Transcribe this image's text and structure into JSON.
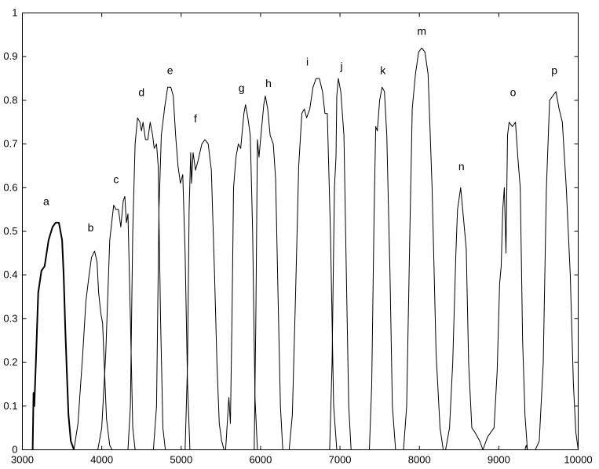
{
  "chart_data": {
    "type": "line",
    "title": "",
    "xlabel": "",
    "ylabel": "",
    "xlim": [
      3000,
      10000
    ],
    "ylim": [
      0,
      1
    ],
    "xticks": [
      "3000",
      "4000",
      "5000",
      "6000",
      "7000",
      "8000",
      "9000",
      "10000"
    ],
    "yticks": [
      "0",
      "0.1",
      "0.2",
      "0.3",
      "0.4",
      "0.5",
      "0.6",
      "0.7",
      "0.8",
      "0.9",
      "1"
    ],
    "grid": false,
    "series": [
      {
        "name": "a",
        "label_at": [
          3300,
          0.56
        ],
        "bold": true,
        "points": [
          [
            3130,
            0
          ],
          [
            3140,
            0.13
          ],
          [
            3150,
            0.1
          ],
          [
            3170,
            0.2
          ],
          [
            3200,
            0.36
          ],
          [
            3240,
            0.41
          ],
          [
            3280,
            0.42
          ],
          [
            3330,
            0.48
          ],
          [
            3380,
            0.51
          ],
          [
            3420,
            0.52
          ],
          [
            3460,
            0.52
          ],
          [
            3500,
            0.48
          ],
          [
            3520,
            0.4
          ],
          [
            3540,
            0.28
          ],
          [
            3560,
            0.18
          ],
          [
            3580,
            0.08
          ],
          [
            3610,
            0.02
          ],
          [
            3650,
            0
          ]
        ]
      },
      {
        "name": "b",
        "label_at": [
          3860,
          0.5
        ],
        "points": [
          [
            3650,
            0
          ],
          [
            3700,
            0.06
          ],
          [
            3760,
            0.22
          ],
          [
            3800,
            0.34
          ],
          [
            3840,
            0.4
          ],
          [
            3870,
            0.44
          ],
          [
            3910,
            0.455
          ],
          [
            3940,
            0.43
          ],
          [
            3960,
            0.36
          ],
          [
            3990,
            0.31
          ],
          [
            4010,
            0.29
          ],
          [
            4030,
            0.2
          ],
          [
            4060,
            0.07
          ],
          [
            4100,
            0.01
          ],
          [
            4130,
            0
          ]
        ]
      },
      {
        "name": "c",
        "label_at": [
          4180,
          0.61
        ],
        "points": [
          [
            3950,
            0
          ],
          [
            4000,
            0.05
          ],
          [
            4050,
            0.22
          ],
          [
            4100,
            0.48
          ],
          [
            4150,
            0.56
          ],
          [
            4180,
            0.55
          ],
          [
            4210,
            0.55
          ],
          [
            4240,
            0.51
          ],
          [
            4270,
            0.57
          ],
          [
            4290,
            0.58
          ],
          [
            4310,
            0.52
          ],
          [
            4330,
            0.54
          ],
          [
            4360,
            0.3
          ],
          [
            4390,
            0.05
          ],
          [
            4420,
            0
          ]
        ]
      },
      {
        "name": "d",
        "label_at": [
          4500,
          0.81
        ],
        "points": [
          [
            4330,
            0
          ],
          [
            4360,
            0.1
          ],
          [
            4390,
            0.5
          ],
          [
            4420,
            0.7
          ],
          [
            4450,
            0.76
          ],
          [
            4480,
            0.75
          ],
          [
            4500,
            0.73
          ],
          [
            4520,
            0.75
          ],
          [
            4550,
            0.71
          ],
          [
            4580,
            0.71
          ],
          [
            4610,
            0.75
          ],
          [
            4640,
            0.72
          ],
          [
            4660,
            0.69
          ],
          [
            4690,
            0.7
          ],
          [
            4710,
            0.65
          ],
          [
            4740,
            0.3
          ],
          [
            4770,
            0.05
          ],
          [
            4800,
            0
          ]
        ]
      },
      {
        "name": "e",
        "label_at": [
          4860,
          0.86
        ],
        "points": [
          [
            4650,
            0
          ],
          [
            4690,
            0.1
          ],
          [
            4720,
            0.55
          ],
          [
            4750,
            0.72
          ],
          [
            4790,
            0.78
          ],
          [
            4830,
            0.83
          ],
          [
            4870,
            0.83
          ],
          [
            4900,
            0.81
          ],
          [
            4930,
            0.72
          ],
          [
            4960,
            0.65
          ],
          [
            4990,
            0.61
          ],
          [
            5020,
            0.63
          ],
          [
            5050,
            0.45
          ],
          [
            5080,
            0.15
          ],
          [
            5110,
            0
          ]
        ]
      },
      {
        "name": "f",
        "label_at": [
          5180,
          0.75
        ],
        "points": [
          [
            5050,
            0
          ],
          [
            5080,
            0.2
          ],
          [
            5100,
            0.55
          ],
          [
            5120,
            0.68
          ],
          [
            5130,
            0.61
          ],
          [
            5150,
            0.68
          ],
          [
            5180,
            0.64
          ],
          [
            5210,
            0.66
          ],
          [
            5260,
            0.7
          ],
          [
            5300,
            0.71
          ],
          [
            5340,
            0.7
          ],
          [
            5380,
            0.64
          ],
          [
            5420,
            0.4
          ],
          [
            5450,
            0.2
          ],
          [
            5480,
            0.06
          ],
          [
            5510,
            0.02
          ],
          [
            5540,
            0
          ]
        ]
      },
      {
        "name": "g",
        "label_at": [
          5760,
          0.82
        ],
        "points": [
          [
            5560,
            0
          ],
          [
            5600,
            0.12
          ],
          [
            5620,
            0.06
          ],
          [
            5640,
            0.3
          ],
          [
            5660,
            0.6
          ],
          [
            5690,
            0.67
          ],
          [
            5720,
            0.7
          ],
          [
            5750,
            0.69
          ],
          [
            5790,
            0.77
          ],
          [
            5810,
            0.79
          ],
          [
            5840,
            0.76
          ],
          [
            5870,
            0.72
          ],
          [
            5900,
            0.5
          ],
          [
            5930,
            0.12
          ],
          [
            5960,
            0
          ]
        ]
      },
      {
        "name": "h",
        "label_at": [
          6100,
          0.83
        ],
        "points": [
          [
            5920,
            0
          ],
          [
            5940,
            0.3
          ],
          [
            5960,
            0.71
          ],
          [
            5980,
            0.67
          ],
          [
            6010,
            0.73
          ],
          [
            6040,
            0.79
          ],
          [
            6060,
            0.81
          ],
          [
            6090,
            0.78
          ],
          [
            6120,
            0.72
          ],
          [
            6160,
            0.7
          ],
          [
            6190,
            0.62
          ],
          [
            6220,
            0.35
          ],
          [
            6250,
            0.1
          ],
          [
            6280,
            0
          ]
        ]
      },
      {
        "name": "i",
        "label_at": [
          6590,
          0.88
        ],
        "points": [
          [
            6360,
            0
          ],
          [
            6400,
            0.08
          ],
          [
            6440,
            0.35
          ],
          [
            6480,
            0.65
          ],
          [
            6520,
            0.77
          ],
          [
            6550,
            0.78
          ],
          [
            6580,
            0.76
          ],
          [
            6620,
            0.78
          ],
          [
            6660,
            0.83
          ],
          [
            6700,
            0.85
          ],
          [
            6740,
            0.85
          ],
          [
            6780,
            0.82
          ],
          [
            6810,
            0.77
          ],
          [
            6840,
            0.77
          ],
          [
            6880,
            0.5
          ],
          [
            6920,
            0.1
          ],
          [
            6960,
            0
          ]
        ]
      },
      {
        "name": "j",
        "label_at": [
          7020,
          0.87
        ],
        "points": [
          [
            6870,
            0
          ],
          [
            6900,
            0.2
          ],
          [
            6930,
            0.6
          ],
          [
            6950,
            0.67
          ],
          [
            6960,
            0.81
          ],
          [
            6980,
            0.85
          ],
          [
            7010,
            0.82
          ],
          [
            7050,
            0.72
          ],
          [
            7080,
            0.4
          ],
          [
            7110,
            0.1
          ],
          [
            7140,
            0
          ]
        ]
      },
      {
        "name": "k",
        "label_at": [
          7540,
          0.86
        ],
        "points": [
          [
            7370,
            0
          ],
          [
            7400,
            0.15
          ],
          [
            7430,
            0.55
          ],
          [
            7450,
            0.74
          ],
          [
            7470,
            0.73
          ],
          [
            7500,
            0.8
          ],
          [
            7530,
            0.83
          ],
          [
            7560,
            0.82
          ],
          [
            7590,
            0.72
          ],
          [
            7630,
            0.4
          ],
          [
            7660,
            0.1
          ],
          [
            7700,
            0
          ]
        ]
      },
      {
        "name": "m",
        "label_at": [
          8030,
          0.95
        ],
        "points": [
          [
            7800,
            0
          ],
          [
            7840,
            0.1
          ],
          [
            7880,
            0.5
          ],
          [
            7910,
            0.78
          ],
          [
            7950,
            0.86
          ],
          [
            7990,
            0.91
          ],
          [
            8030,
            0.92
          ],
          [
            8070,
            0.91
          ],
          [
            8110,
            0.86
          ],
          [
            8160,
            0.6
          ],
          [
            8210,
            0.22
          ],
          [
            8260,
            0.05
          ],
          [
            8300,
            0
          ]
        ]
      },
      {
        "name": "n",
        "label_at": [
          8530,
          0.64
        ],
        "points": [
          [
            8330,
            0
          ],
          [
            8380,
            0.05
          ],
          [
            8420,
            0.2
          ],
          [
            8460,
            0.45
          ],
          [
            8480,
            0.55
          ],
          [
            8520,
            0.6
          ],
          [
            8560,
            0.52
          ],
          [
            8590,
            0.46
          ],
          [
            8620,
            0.2
          ],
          [
            8660,
            0.05
          ],
          [
            8700,
            0.04
          ],
          [
            8760,
            0.02
          ],
          [
            8800,
            0
          ],
          [
            8860,
            0.03
          ],
          [
            8900,
            0.04
          ],
          [
            8940,
            0.05
          ],
          [
            8980,
            0.18
          ],
          [
            9010,
            0.38
          ],
          [
            9030,
            0.42
          ],
          [
            9050,
            0.55
          ],
          [
            9070,
            0.6
          ],
          [
            9090,
            0.45
          ],
          [
            9110,
            0.72
          ],
          [
            9130,
            0.75
          ],
          [
            9170,
            0.74
          ],
          [
            9210,
            0.75
          ],
          [
            9240,
            0.67
          ],
          [
            9270,
            0.6
          ],
          [
            9300,
            0.25
          ],
          [
            9330,
            0.08
          ],
          [
            9360,
            0
          ]
        ]
      },
      {
        "name": "o",
        "label_at": [
          9180,
          0.81
        ],
        "points": [
          [
            9330,
            0
          ],
          [
            9345,
            0.01
          ],
          [
            9360,
            0
          ]
        ]
      },
      {
        "name": "p",
        "label_at": [
          9700,
          0.86
        ],
        "points": [
          [
            9460,
            0
          ],
          [
            9510,
            0.02
          ],
          [
            9560,
            0.2
          ],
          [
            9600,
            0.6
          ],
          [
            9640,
            0.8
          ],
          [
            9680,
            0.81
          ],
          [
            9720,
            0.82
          ],
          [
            9760,
            0.78
          ],
          [
            9800,
            0.75
          ],
          [
            9850,
            0.6
          ],
          [
            9900,
            0.4
          ],
          [
            9940,
            0.15
          ],
          [
            9970,
            0.04
          ],
          [
            10000,
            0
          ]
        ]
      }
    ]
  }
}
